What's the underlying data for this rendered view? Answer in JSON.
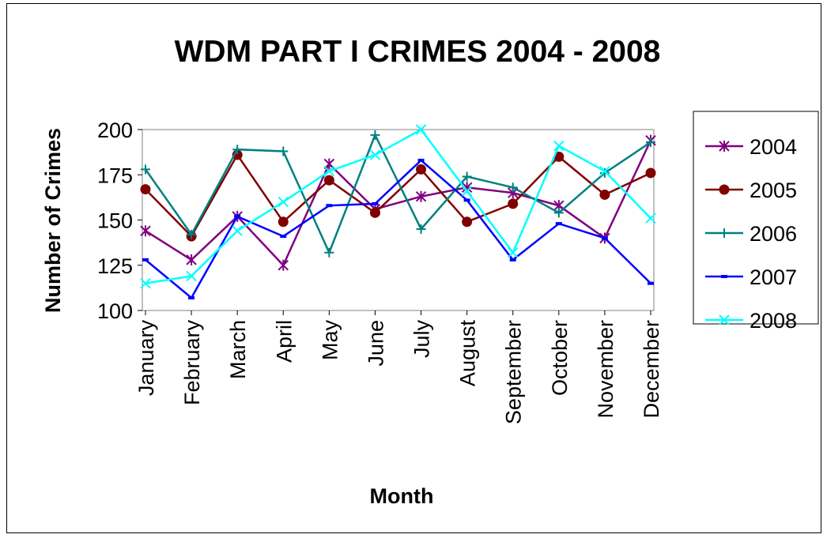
{
  "chart_data": {
    "type": "line",
    "title": "WDM PART I CRIMES 2004 - 2008",
    "xlabel": "Month",
    "ylabel": "Number of Crimes",
    "ylim": [
      100,
      200
    ],
    "yticks": [
      "100",
      "125",
      "150",
      "175",
      "200"
    ],
    "categories": [
      "January",
      "February",
      "March",
      "April",
      "May",
      "June",
      "July",
      "August",
      "September",
      "October",
      "November",
      "December"
    ],
    "grid": false,
    "legend_position": "right",
    "series": [
      {
        "name": "2004",
        "color": "#800080",
        "marker": "asterisk",
        "values": [
          144,
          128,
          152,
          125,
          181,
          156,
          163,
          168,
          165,
          158,
          140,
          194
        ]
      },
      {
        "name": "2005",
        "color": "#800000",
        "marker": "circle",
        "values": [
          167,
          141,
          186,
          149,
          172,
          154,
          178,
          149,
          159,
          185,
          164,
          176
        ]
      },
      {
        "name": "2006",
        "color": "#008080",
        "marker": "plus",
        "values": [
          178,
          142,
          189,
          188,
          132,
          197,
          145,
          174,
          168,
          154,
          176,
          193
        ]
      },
      {
        "name": "2007",
        "color": "#0000FF",
        "marker": "dash",
        "values": [
          128,
          107,
          152,
          141,
          158,
          159,
          183,
          161,
          128,
          148,
          140,
          115
        ]
      },
      {
        "name": "2008",
        "color": "#00FFFF",
        "marker": "cross",
        "values": [
          115,
          119,
          144,
          160,
          177,
          186,
          200,
          166,
          132,
          191,
          177,
          151
        ]
      }
    ]
  }
}
